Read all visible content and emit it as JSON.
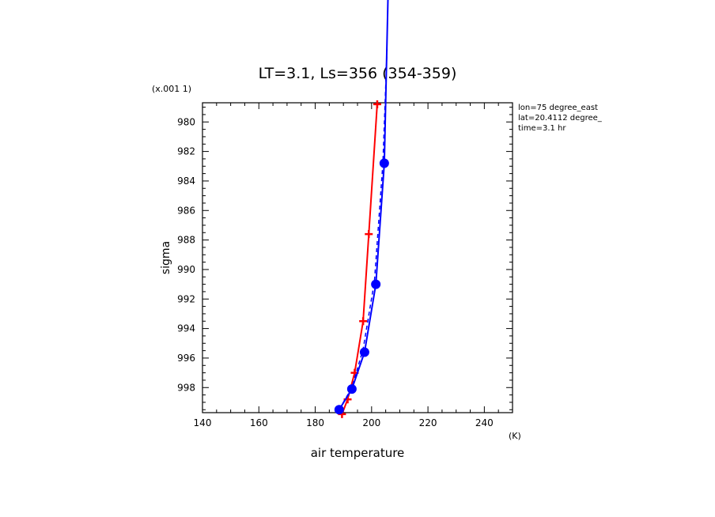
{
  "chart_data": {
    "type": "line",
    "title": "LT=3.1, Ls=356 (354-359)",
    "xlabel": "air temperature",
    "xunit": "(K)",
    "ylabel": "sigma",
    "yscale_label": "(x.001 1)",
    "xlim": [
      140,
      250
    ],
    "ylim": [
      999.7,
      978.7
    ],
    "y_inverted": true,
    "xticks": [
      140,
      160,
      180,
      200,
      220,
      240
    ],
    "yticks": [
      980,
      982,
      984,
      986,
      988,
      990,
      992,
      994,
      996,
      998
    ],
    "grid": false,
    "info_lines": [
      "lon=75 degree_east",
      "lat=20.4112 degree_",
      "time=3.1 hr"
    ],
    "series": [
      {
        "color": "#ff0000",
        "marker": "plus",
        "line": "solid",
        "points": [
          [
            189.5,
            999.8
          ],
          [
            191.5,
            998.8
          ],
          [
            194,
            997.0
          ],
          [
            197,
            993.5
          ],
          [
            199,
            987.6
          ],
          [
            202,
            978.8
          ]
        ]
      },
      {
        "color": "#0000ff",
        "marker": "circle",
        "line": "solid",
        "points": [
          [
            188.5,
            999.5
          ],
          [
            193,
            998.1
          ],
          [
            197.5,
            995.6
          ],
          [
            201.5,
            991.0
          ],
          [
            204.5,
            982.8
          ],
          [
            206,
            970.0
          ]
        ]
      },
      {
        "color": "#0000ff",
        "marker": "none",
        "line": "dashed",
        "points": [
          [
            188.5,
            999.5
          ],
          [
            193,
            998.0
          ],
          [
            197,
            995.4
          ],
          [
            201,
            990.8
          ],
          [
            204,
            982.8
          ],
          [
            205.5,
            975.0
          ]
        ]
      }
    ]
  }
}
